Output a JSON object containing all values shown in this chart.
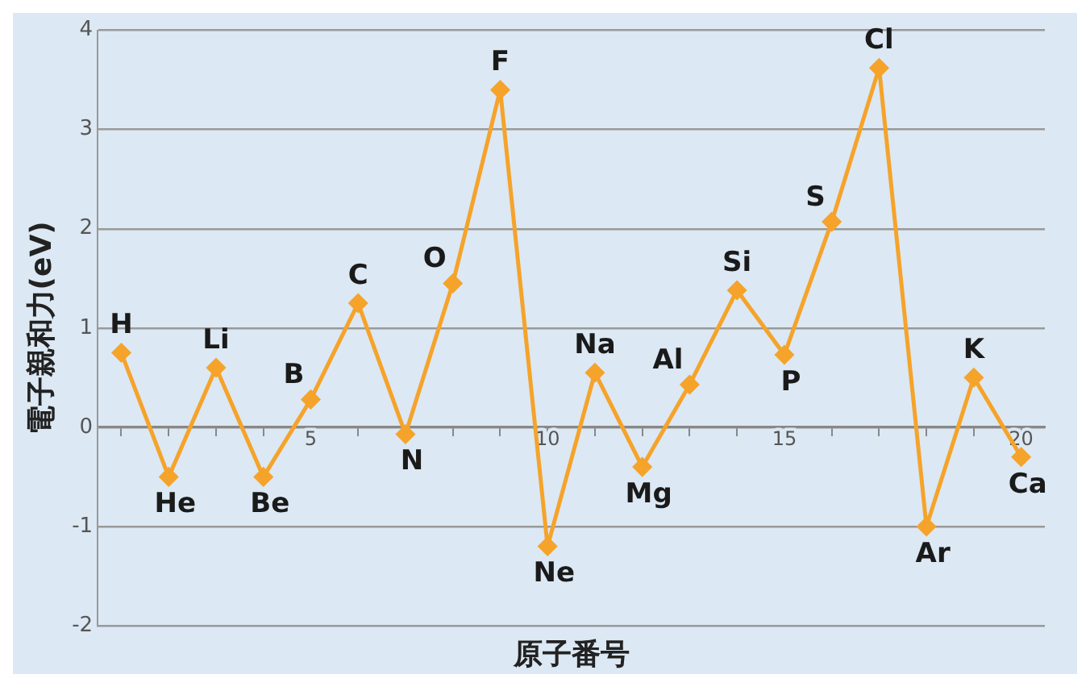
{
  "chart_data": {
    "type": "line",
    "xlabel": "原子番号",
    "ylabel": "電子親和力(eV)",
    "x": [
      1,
      2,
      3,
      4,
      5,
      6,
      7,
      8,
      9,
      10,
      11,
      12,
      13,
      14,
      15,
      16,
      17,
      18,
      19,
      20
    ],
    "series": [
      {
        "color": "#f5a32a",
        "values": [
          0.75,
          -0.5,
          0.6,
          -0.5,
          0.28,
          1.25,
          -0.07,
          1.45,
          3.4,
          -1.2,
          0.55,
          -0.4,
          0.43,
          1.38,
          0.73,
          2.07,
          3.62,
          -1.0,
          0.5,
          -0.3
        ]
      }
    ],
    "xlim": [
      0.5,
      20.5
    ],
    "xticks": [
      {
        "value": 1,
        "label": null
      },
      {
        "value": 2,
        "label": null
      },
      {
        "value": 3,
        "label": null
      },
      {
        "value": 4,
        "label": null
      },
      5,
      {
        "value": 6,
        "label": null
      },
      {
        "value": 7,
        "label": null
      },
      {
        "value": 8,
        "label": null
      },
      {
        "value": 9,
        "label": null
      },
      10,
      {
        "value": 11,
        "label": null
      },
      {
        "value": 12,
        "label": null
      },
      {
        "value": 13,
        "label": null
      },
      {
        "value": 14,
        "label": null
      },
      15,
      {
        "value": 16,
        "label": null
      },
      {
        "value": 17,
        "label": null
      },
      {
        "value": 18,
        "label": null
      },
      {
        "value": 19,
        "label": null
      },
      20
    ],
    "ylim": [
      -2,
      4
    ],
    "yticks": [
      -2,
      -1,
      0,
      1,
      2,
      3,
      4
    ],
    "grid": "y",
    "marker": "diamond",
    "line_style": "solid",
    "annotations": [
      {
        "text": "H",
        "x": 1,
        "y": 0.75
      },
      {
        "text": "He",
        "x": 2,
        "y": -0.5
      },
      {
        "text": "Li",
        "x": 3,
        "y": 0.6
      },
      {
        "text": "Be",
        "x": 4,
        "y": -0.5
      },
      {
        "text": "B",
        "x": 5,
        "y": 0.28
      },
      {
        "text": "C",
        "x": 6,
        "y": 1.25
      },
      {
        "text": "N",
        "x": 7,
        "y": -0.07
      },
      {
        "text": "O",
        "x": 8,
        "y": 1.45
      },
      {
        "text": "F",
        "x": 9,
        "y": 3.4
      },
      {
        "text": "Ne",
        "x": 10,
        "y": -1.2
      },
      {
        "text": "Na",
        "x": 11,
        "y": 0.55
      },
      {
        "text": "Mg",
        "x": 12,
        "y": -0.4
      },
      {
        "text": "Al",
        "x": 13,
        "y": 0.43
      },
      {
        "text": "Si",
        "x": 14,
        "y": 1.38
      },
      {
        "text": "P",
        "x": 15,
        "y": 0.73
      },
      {
        "text": "S",
        "x": 16,
        "y": 2.07
      },
      {
        "text": "Cl",
        "x": 17,
        "y": 3.62
      },
      {
        "text": "Ar",
        "x": 18,
        "y": -1.0
      },
      {
        "text": "K",
        "x": 19,
        "y": 0.5
      },
      {
        "text": "Ca",
        "x": 20,
        "y": -0.3
      }
    ]
  }
}
